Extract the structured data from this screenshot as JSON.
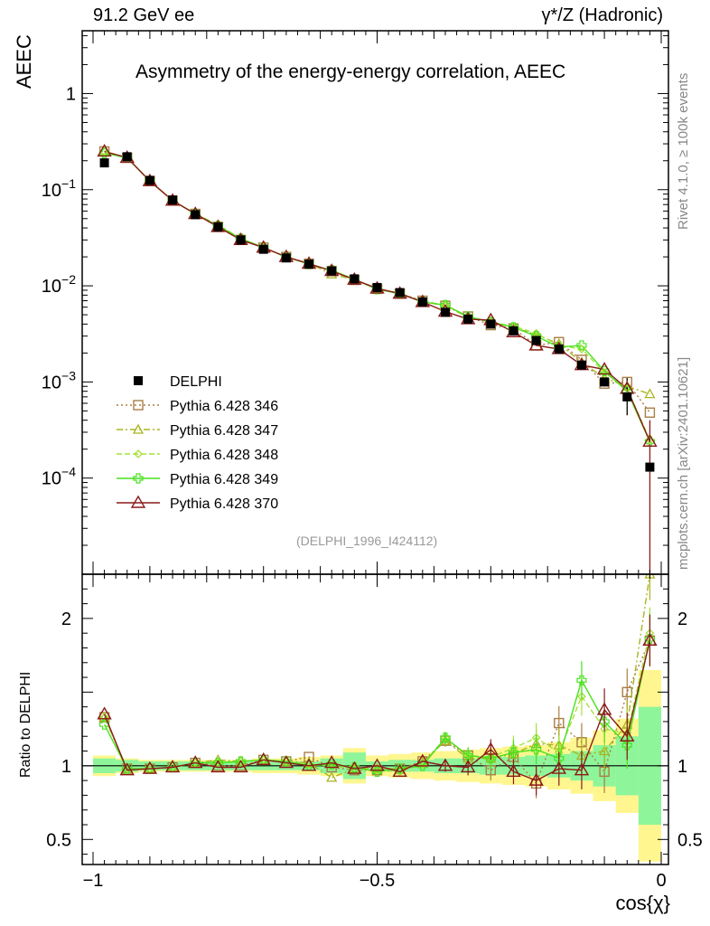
{
  "header": {
    "top_left": "91.2 GeV ee",
    "top_right": "γ*/Z (Hadronic)",
    "title": "Asymmetry of the energy-energy correlation, AEEC",
    "side_rivet": "Rivet 4.1.0, ≥ 100k events",
    "side_mcplots": "mcplots.cern.ch [arXiv:2401.10621]",
    "analysis_id": "(DELPHI_1996_I424112)"
  },
  "chart_data": [
    {
      "type": "line",
      "role": "main",
      "yscale": "log",
      "ylabel": "AEEC",
      "xlabel": "",
      "xlim": [
        -1.0,
        0.0
      ],
      "ylim": [
        1e-05,
        4.5
      ],
      "yticks": [
        {
          "value": 1,
          "label": "1"
        },
        {
          "value": 0.1,
          "base": "10",
          "exp": "−1"
        },
        {
          "value": 0.01,
          "base": "10",
          "exp": "−2"
        },
        {
          "value": 0.001,
          "base": "10",
          "exp": "−3"
        },
        {
          "value": 0.0001,
          "base": "10",
          "exp": "−4"
        }
      ],
      "x": [
        -0.98,
        -0.94,
        -0.9,
        -0.86,
        -0.82,
        -0.78,
        -0.74,
        -0.7,
        -0.66,
        -0.62,
        -0.58,
        -0.54,
        -0.5,
        -0.46,
        -0.42,
        -0.38,
        -0.34,
        -0.3,
        -0.26,
        -0.22,
        -0.18,
        -0.14,
        -0.1,
        -0.06,
        -0.02
      ],
      "series": [
        {
          "name": "DELPHI",
          "color": "#000000",
          "marker": "square-filled",
          "values": [
            0.19,
            0.22,
            0.125,
            0.078,
            0.055,
            0.041,
            0.03,
            0.024,
            0.0195,
            0.0168,
            0.0143,
            0.0118,
            0.0096,
            0.0085,
            0.0068,
            0.0053,
            0.0045,
            0.004,
            0.0034,
            0.0027,
            0.0022,
            0.0015,
            0.001,
            0.0007,
            0.00013
          ]
        },
        {
          "name": "Pythia 6.428 346",
          "color": "#a87f45",
          "marker": "square-open",
          "dash": "2,3",
          "values": [
            0.25,
            0.215,
            0.123,
            0.077,
            0.056,
            0.041,
            0.03,
            0.025,
            0.02,
            0.017,
            0.0142,
            0.0115,
            0.0093,
            0.0083,
            0.007,
            0.0062,
            0.0048,
            0.0039,
            0.0036,
            0.0024,
            0.0026,
            0.0017,
            0.00096,
            0.001,
            0.00048
          ]
        },
        {
          "name": "Pythia 6.428 347",
          "color": "#a9b520",
          "marker": "triangle-open-small",
          "dash": "7,3,2,3",
          "values": [
            0.25,
            0.215,
            0.123,
            0.077,
            0.056,
            0.043,
            0.031,
            0.025,
            0.02,
            0.0172,
            0.0132,
            0.0116,
            0.0094,
            0.0083,
            0.0069,
            0.0062,
            0.0047,
            0.0042,
            0.0037,
            0.0031,
            0.0025,
            0.0016,
            0.0011,
            0.0009,
            0.00075
          ]
        },
        {
          "name": "Pythia 6.428 348",
          "color": "#a6e23a",
          "marker": "diamond-open",
          "dash": "6,3",
          "values": [
            0.25,
            0.215,
            0.123,
            0.077,
            0.056,
            0.042,
            0.031,
            0.025,
            0.02,
            0.017,
            0.0143,
            0.0116,
            0.0093,
            0.0082,
            0.0069,
            0.0063,
            0.0048,
            0.0042,
            0.0038,
            0.0032,
            0.0024,
            0.0022,
            0.00125,
            0.00085,
            0.00025
          ]
        },
        {
          "name": "Pythia 6.428 349",
          "color": "#48e21e",
          "marker": "cross-open",
          "dash": "",
          "values": [
            0.24,
            0.215,
            0.123,
            0.077,
            0.056,
            0.042,
            0.031,
            0.025,
            0.02,
            0.0168,
            0.0145,
            0.0117,
            0.0092,
            0.0083,
            0.0068,
            0.0063,
            0.0048,
            0.0042,
            0.0037,
            0.003,
            0.0023,
            0.0024,
            0.0013,
            0.0008,
            0.00024
          ]
        },
        {
          "name": "Pythia 6.428 370",
          "color": "#8b1a1a",
          "marker": "triangle-open",
          "dash": "",
          "values": [
            0.25,
            0.215,
            0.123,
            0.077,
            0.056,
            0.041,
            0.03,
            0.025,
            0.02,
            0.017,
            0.0143,
            0.0116,
            0.0094,
            0.0083,
            0.0068,
            0.0054,
            0.0045,
            0.0044,
            0.0033,
            0.0024,
            0.0022,
            0.0015,
            0.00135,
            0.00085,
            0.00024
          ]
        }
      ]
    },
    {
      "type": "line",
      "role": "ratio",
      "ylabel": "Ratio to DELPHI",
      "xlabel": "cos{χ}",
      "xlim": [
        -1.0,
        0.0
      ],
      "ylim": [
        0.33,
        2.3
      ],
      "xticks": [
        {
          "value": -1,
          "label": "−1"
        },
        {
          "value": -0.5,
          "label": "−0.5"
        },
        {
          "value": 0,
          "label": "0"
        }
      ],
      "yticks": [
        {
          "value": 0.5,
          "label": "0.5"
        },
        {
          "value": 1,
          "label": "1"
        },
        {
          "value": 2,
          "label": "2"
        }
      ],
      "band_stat": [
        0.05,
        0.04,
        0.03,
        0.03,
        0.03,
        0.03,
        0.03,
        0.03,
        0.03,
        0.03,
        0.05,
        0.09,
        0.03,
        0.04,
        0.04,
        0.05,
        0.05,
        0.06,
        0.06,
        0.07,
        0.08,
        0.1,
        0.14,
        0.2,
        0.4
      ],
      "band_total": [
        0.07,
        0.05,
        0.04,
        0.04,
        0.04,
        0.04,
        0.04,
        0.05,
        0.05,
        0.06,
        0.07,
        0.12,
        0.07,
        0.08,
        0.09,
        0.1,
        0.11,
        0.12,
        0.13,
        0.14,
        0.16,
        0.19,
        0.24,
        0.32,
        0.65
      ],
      "series": [
        {
          "name": "Pythia 6.428 346",
          "values": [
            1.33,
            0.98,
            0.98,
            0.99,
            1.02,
            1.0,
            1.0,
            1.04,
            1.03,
            1.06,
            0.99,
            0.97,
            0.97,
            0.98,
            1.03,
            1.17,
            1.07,
            0.97,
            1.06,
            0.88,
            1.29,
            1.16,
            0.96,
            1.5,
            1.85
          ]
        },
        {
          "name": "Pythia 6.428 347",
          "values": [
            1.33,
            0.98,
            0.98,
            0.99,
            1.02,
            1.04,
            1.03,
            1.04,
            1.03,
            1.02,
            0.92,
            0.98,
            0.98,
            0.98,
            1.02,
            1.17,
            1.05,
            1.05,
            1.08,
            1.15,
            1.14,
            1.07,
            1.1,
            1.28,
            2.3
          ]
        },
        {
          "name": "Pythia 6.428 348",
          "values": [
            1.33,
            0.98,
            0.98,
            0.99,
            1.02,
            1.02,
            1.03,
            1.04,
            1.03,
            1.01,
            1.0,
            0.98,
            0.97,
            0.96,
            1.01,
            1.19,
            1.07,
            1.06,
            1.12,
            1.19,
            1.09,
            1.47,
            1.25,
            1.22,
            1.9
          ]
        },
        {
          "name": "Pythia 6.428 349",
          "values": [
            1.28,
            0.98,
            0.98,
            0.99,
            1.02,
            1.02,
            1.03,
            1.04,
            1.03,
            1.0,
            1.01,
            0.99,
            0.96,
            0.98,
            1.0,
            1.19,
            1.07,
            1.05,
            1.09,
            1.11,
            1.05,
            1.58,
            1.3,
            1.14,
            1.86
          ]
        },
        {
          "name": "Pythia 6.428 370",
          "values": [
            1.35,
            0.97,
            0.98,
            0.99,
            1.02,
            0.99,
            0.99,
            1.04,
            1.02,
            1.0,
            1.02,
            0.98,
            1.0,
            0.96,
            1.03,
            1.0,
            0.99,
            1.11,
            0.96,
            0.9,
            0.98,
            0.97,
            1.38,
            1.2,
            1.85
          ]
        }
      ]
    }
  ]
}
